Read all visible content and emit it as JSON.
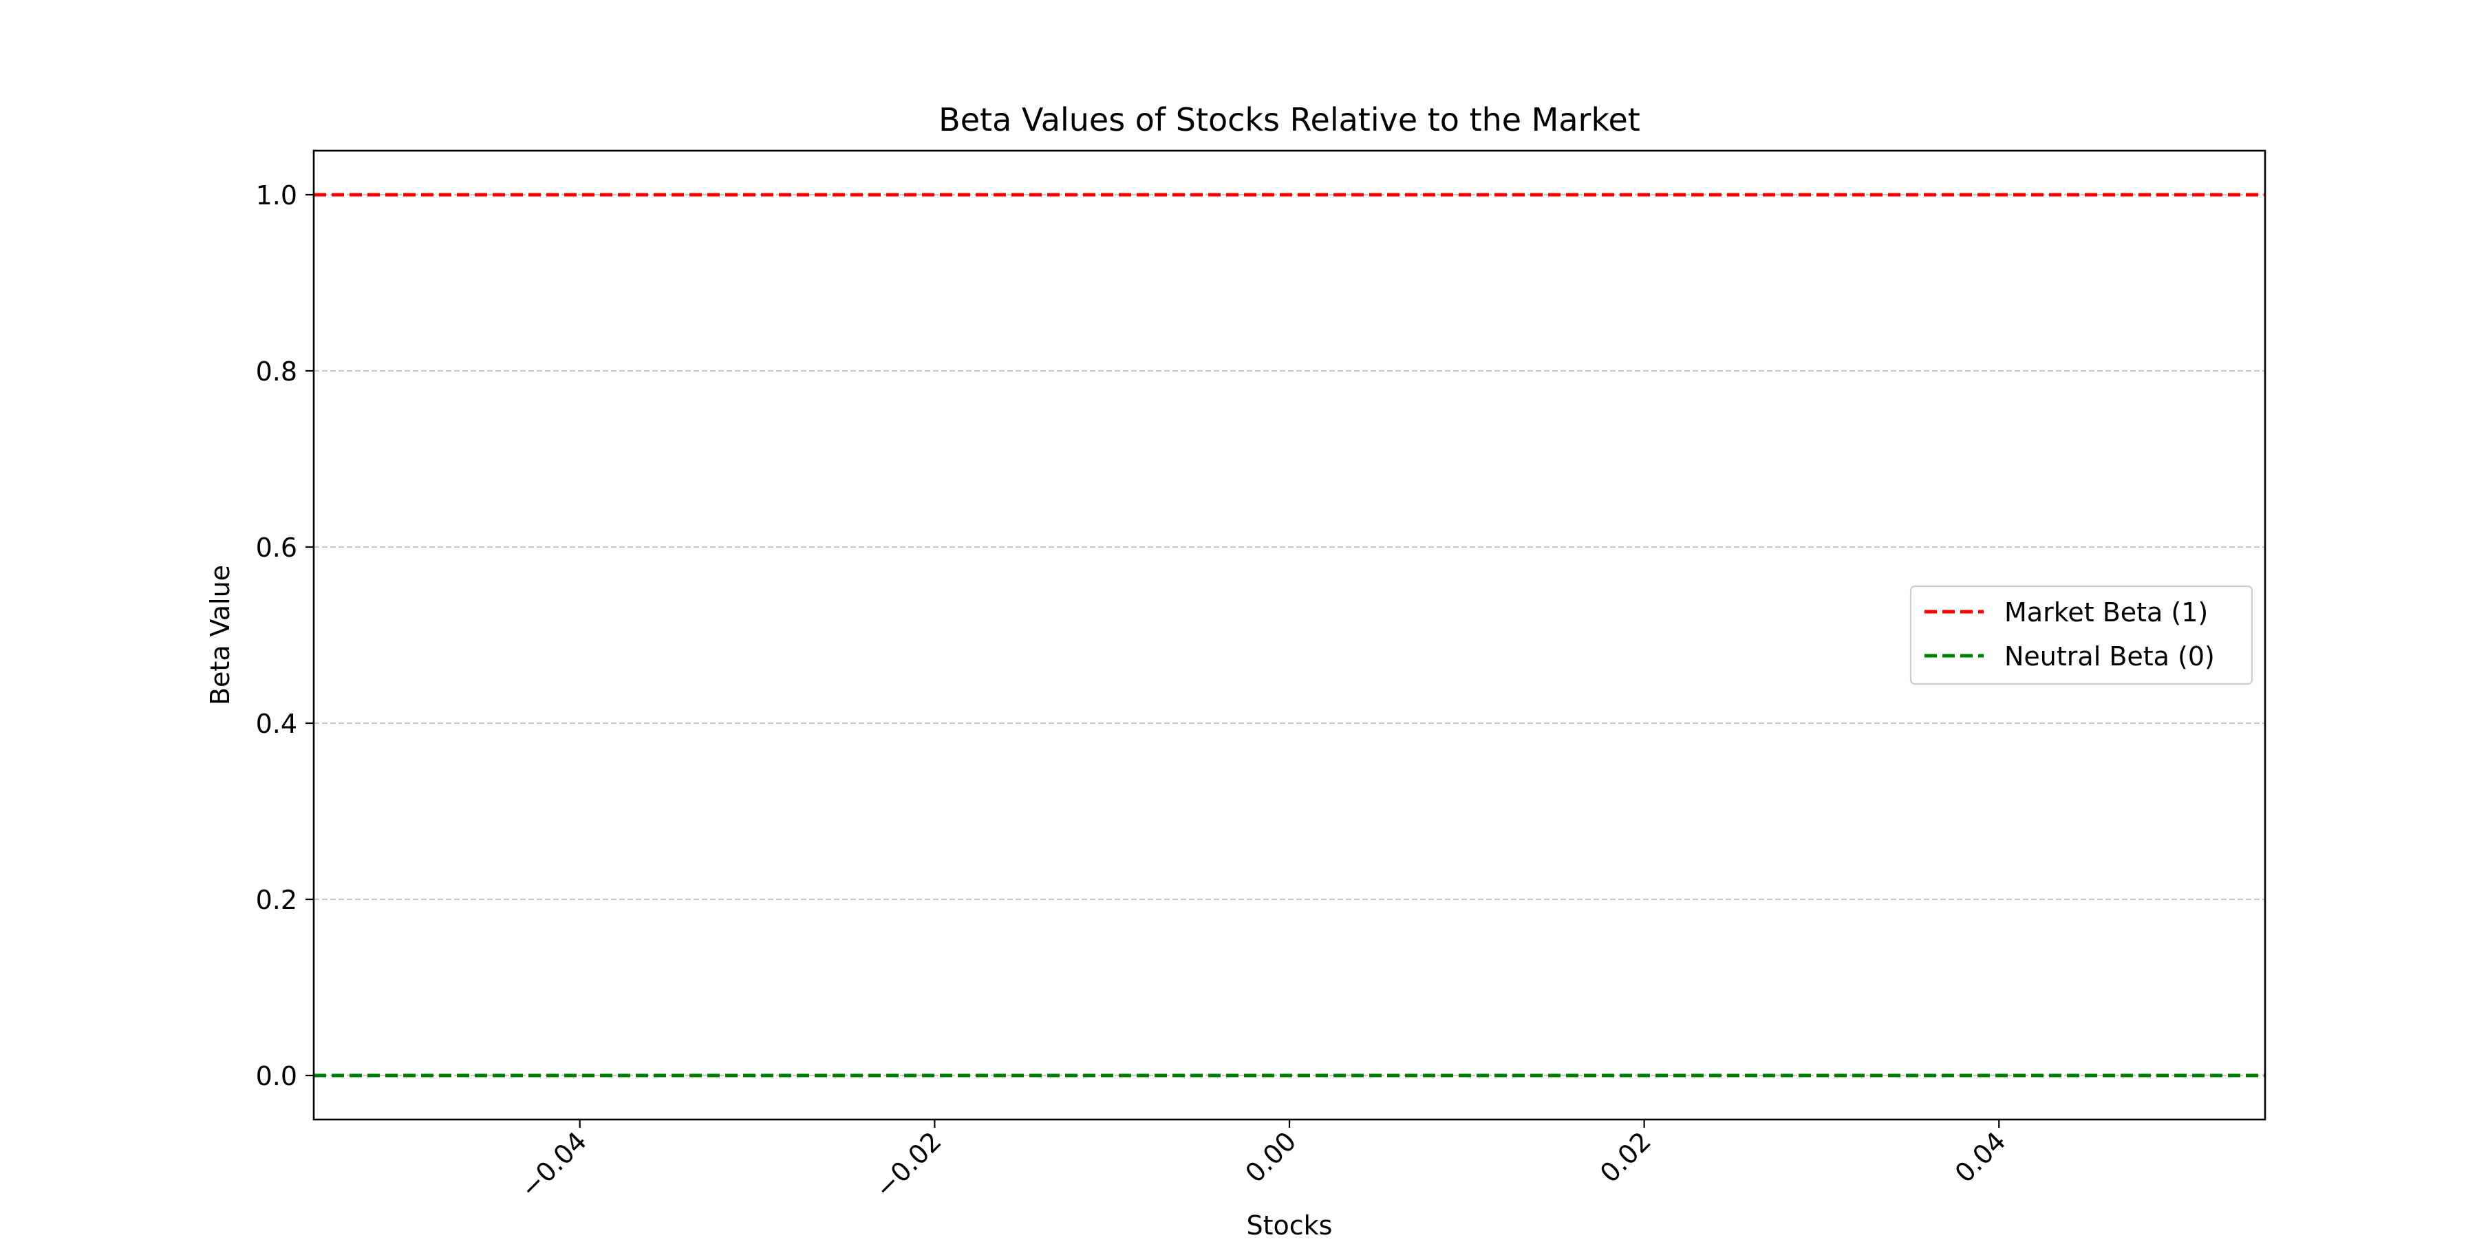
{
  "chart_data": {
    "type": "line",
    "title": "Beta Values of Stocks Relative to the Market",
    "xlabel": "Stocks",
    "ylabel": "Beta Value",
    "xlim": [
      -0.055,
      0.055
    ],
    "ylim": [
      -0.05,
      1.05
    ],
    "x_ticks": [
      -0.04,
      -0.02,
      0.0,
      0.02,
      0.04
    ],
    "x_tick_labels": [
      "−0.04",
      "−0.02",
      "0.00",
      "0.02",
      "0.04"
    ],
    "y_ticks": [
      0.0,
      0.2,
      0.4,
      0.6,
      0.8,
      1.0
    ],
    "y_tick_labels": [
      "0.0",
      "0.2",
      "0.4",
      "0.6",
      "0.8",
      "1.0"
    ],
    "y_grid": true,
    "x_grid": false,
    "legend_position": "center-right",
    "series": [
      {
        "name": "Market Beta (1)",
        "kind": "hline",
        "y": 1,
        "color": "#ff0000",
        "style": "dashed"
      },
      {
        "name": "Neutral Beta (0)",
        "kind": "hline",
        "y": 0,
        "color": "#008000",
        "style": "dashed"
      }
    ]
  }
}
